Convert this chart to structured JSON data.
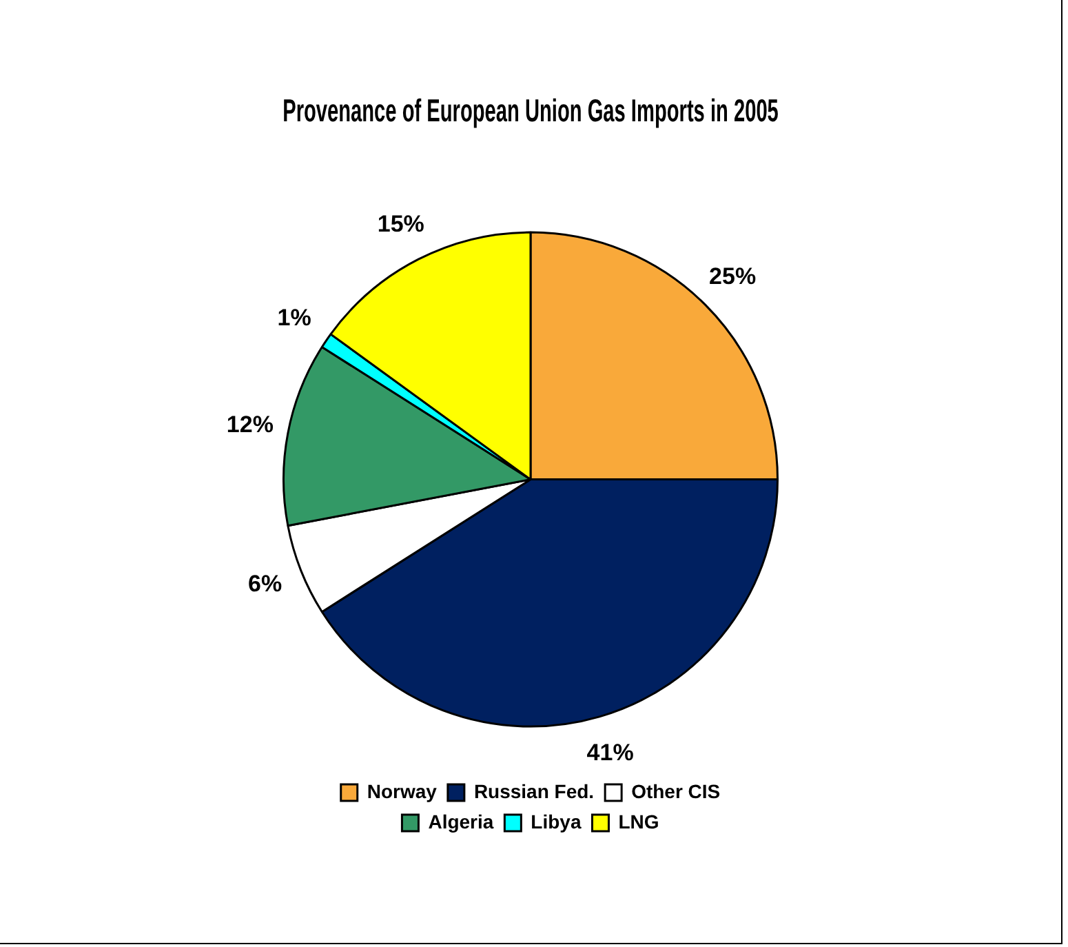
{
  "chart_data": {
    "type": "pie",
    "title": "Provenance of European Union Gas Imports in 2005",
    "categories": [
      "Norway",
      "Russian Fed.",
      "Other CIS",
      "Algeria",
      "Libya",
      "LNG"
    ],
    "values": [
      25,
      41,
      6,
      12,
      1,
      15
    ],
    "colors": [
      "#f9a93a",
      "#002060",
      "#ffffff",
      "#339966",
      "#00ffff",
      "#ffff00"
    ],
    "value_labels": [
      "25%",
      "41%",
      "6%",
      "12%",
      "1%",
      "15%"
    ],
    "legend": "bottom"
  }
}
